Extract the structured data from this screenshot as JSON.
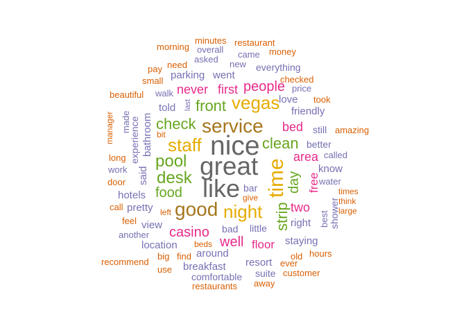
{
  "palette": {
    "c1": "#d95f02",
    "c2": "#7570b3",
    "c3": "#e7298a",
    "c4": "#66a61e",
    "c5": "#e6ab02",
    "c6": "#a6761d",
    "c7": "#666666"
  },
  "words": [
    {
      "text": "nice",
      "c": "c7"
    },
    {
      "text": "great",
      "c": "c7"
    },
    {
      "text": "like",
      "c": "c7"
    },
    {
      "text": "service",
      "c": "c6"
    },
    {
      "text": "good",
      "c": "c6"
    },
    {
      "text": "time",
      "c": "c5"
    },
    {
      "text": "night",
      "c": "c5"
    },
    {
      "text": "vegas",
      "c": "c5"
    },
    {
      "text": "staff",
      "c": "c5"
    },
    {
      "text": "strip",
      "c": "c4"
    },
    {
      "text": "pool",
      "c": "c4"
    },
    {
      "text": "desk",
      "c": "c4"
    },
    {
      "text": "check",
      "c": "c4"
    },
    {
      "text": "front",
      "c": "c4"
    },
    {
      "text": "clean",
      "c": "c4"
    },
    {
      "text": "food",
      "c": "c4"
    },
    {
      "text": "day",
      "c": "c4"
    },
    {
      "text": "casino",
      "c": "c3"
    },
    {
      "text": "well",
      "c": "c3"
    },
    {
      "text": "people",
      "c": "c3"
    },
    {
      "text": "bed",
      "c": "c3"
    },
    {
      "text": "area",
      "c": "c3"
    },
    {
      "text": "never",
      "c": "c3"
    },
    {
      "text": "first",
      "c": "c3"
    },
    {
      "text": "two",
      "c": "c3"
    },
    {
      "text": "floor",
      "c": "c3"
    },
    {
      "text": "free",
      "c": "c3"
    },
    {
      "text": "told",
      "c": "c2"
    },
    {
      "text": "hotels",
      "c": "c2"
    },
    {
      "text": "pretty",
      "c": "c2"
    },
    {
      "text": "view",
      "c": "c2"
    },
    {
      "text": "location",
      "c": "c2"
    },
    {
      "text": "around",
      "c": "c2"
    },
    {
      "text": "breakfast",
      "c": "c2"
    },
    {
      "text": "resort",
      "c": "c2"
    },
    {
      "text": "staying",
      "c": "c2"
    },
    {
      "text": "right",
      "c": "c2"
    },
    {
      "text": "friendly",
      "c": "c2"
    },
    {
      "text": "everything",
      "c": "c2"
    },
    {
      "text": "parking",
      "c": "c2"
    },
    {
      "text": "went",
      "c": "c2"
    },
    {
      "text": "love",
      "c": "c2"
    },
    {
      "text": "know",
      "c": "c2"
    },
    {
      "text": "better",
      "c": "c2"
    },
    {
      "text": "still",
      "c": "c2"
    },
    {
      "text": "bathroom",
      "c": "c2"
    },
    {
      "text": "said",
      "c": "c2"
    },
    {
      "text": "experience",
      "c": "c2"
    },
    {
      "text": "little",
      "c": "c2"
    },
    {
      "text": "bad",
      "c": "c2"
    },
    {
      "text": "bar",
      "c": "c2"
    },
    {
      "text": "suite",
      "c": "c2"
    },
    {
      "text": "comfortable",
      "c": "c2"
    },
    {
      "text": "another",
      "c": "c2"
    },
    {
      "text": "water",
      "c": "c2"
    },
    {
      "text": "called",
      "c": "c2"
    },
    {
      "text": "price",
      "c": "c2"
    },
    {
      "text": "came",
      "c": "c2"
    },
    {
      "text": "asked",
      "c": "c2"
    },
    {
      "text": "new",
      "c": "c2"
    },
    {
      "text": "overall",
      "c": "c2"
    },
    {
      "text": "walk",
      "c": "c2"
    },
    {
      "text": "work",
      "c": "c2"
    },
    {
      "text": "made",
      "c": "c2"
    },
    {
      "text": "shower",
      "c": "c2"
    },
    {
      "text": "best",
      "c": "c2"
    },
    {
      "text": "last",
      "c": "c2"
    },
    {
      "text": "amazing",
      "c": "c1"
    },
    {
      "text": "restaurants",
      "c": "c1"
    },
    {
      "text": "restaurant",
      "c": "c1"
    },
    {
      "text": "minutes",
      "c": "c1"
    },
    {
      "text": "morning",
      "c": "c1"
    },
    {
      "text": "money",
      "c": "c1"
    },
    {
      "text": "need",
      "c": "c1"
    },
    {
      "text": "pay",
      "c": "c1"
    },
    {
      "text": "small",
      "c": "c1"
    },
    {
      "text": "checked",
      "c": "c1"
    },
    {
      "text": "took",
      "c": "c1"
    },
    {
      "text": "beautiful",
      "c": "c1"
    },
    {
      "text": "manager",
      "c": "c1"
    },
    {
      "text": "long",
      "c": "c1"
    },
    {
      "text": "door",
      "c": "c1"
    },
    {
      "text": "call",
      "c": "c1"
    },
    {
      "text": "feel",
      "c": "c1"
    },
    {
      "text": "recommend",
      "c": "c1"
    },
    {
      "text": "big",
      "c": "c1"
    },
    {
      "text": "find",
      "c": "c1"
    },
    {
      "text": "use",
      "c": "c1"
    },
    {
      "text": "beds",
      "c": "c1"
    },
    {
      "text": "left",
      "c": "c1"
    },
    {
      "text": "give",
      "c": "c1"
    },
    {
      "text": "bit",
      "c": "c1"
    },
    {
      "text": "times",
      "c": "c1"
    },
    {
      "text": "think",
      "c": "c1"
    },
    {
      "text": "large",
      "c": "c1"
    },
    {
      "text": "hours",
      "c": "c1"
    },
    {
      "text": "old",
      "c": "c1"
    },
    {
      "text": "ever",
      "c": "c1"
    },
    {
      "text": "customer",
      "c": "c1"
    },
    {
      "text": "away",
      "c": "c1"
    }
  ]
}
